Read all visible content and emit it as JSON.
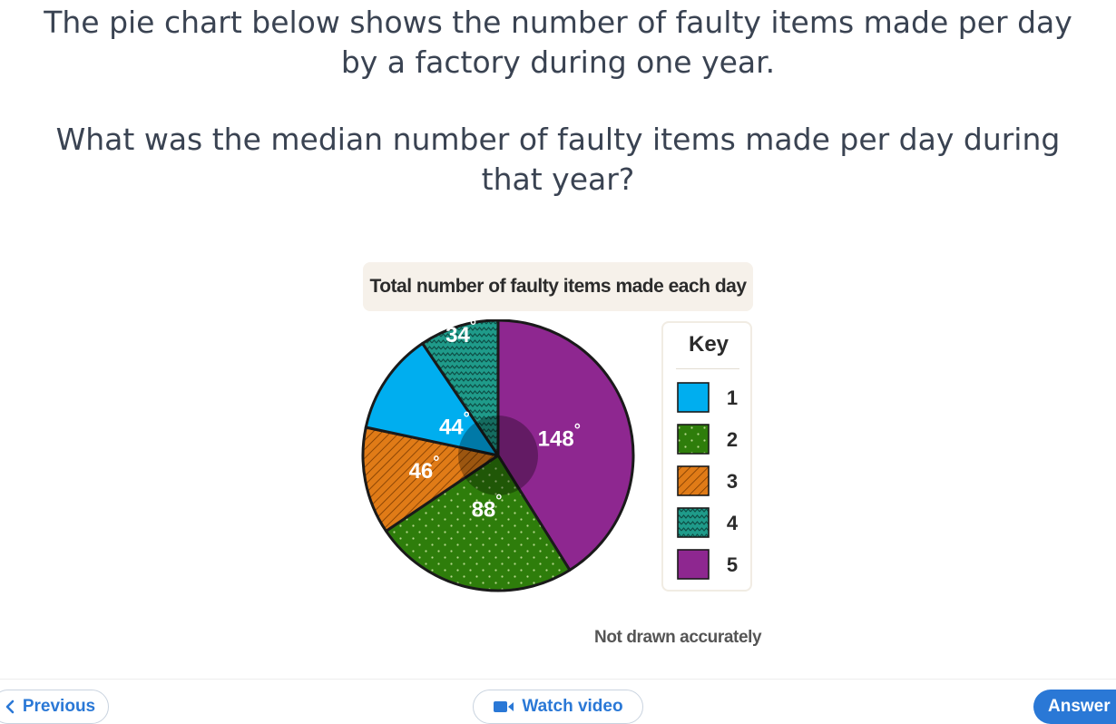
{
  "question": {
    "intro_line1": "The pie chart below shows the number of faulty items made per day",
    "intro_line2": "by a factory during one year.",
    "ask_line1": "What was the median number of faulty items made per day during",
    "ask_line2": "that year?"
  },
  "chart_data": {
    "type": "pie",
    "title": "Total number of faulty items made each day",
    "unit": "°",
    "slices": [
      {
        "name": "1",
        "value": 44,
        "label": "44",
        "color": "#00aeef",
        "pattern": "solid"
      },
      {
        "name": "2",
        "value": 88,
        "label": "88",
        "color": "#2e7d0b",
        "pattern": "dots"
      },
      {
        "name": "3",
        "value": 46,
        "label": "46",
        "color": "#e07b17",
        "pattern": "diagonal"
      },
      {
        "name": "4",
        "value": 34,
        "label": "34",
        "color": "#1f9b8a",
        "pattern": "zigzag"
      },
      {
        "name": "5",
        "value": 148,
        "label": "148",
        "color": "#8e2790",
        "pattern": "solid"
      }
    ],
    "legend": {
      "title": "Key",
      "placement": "right"
    },
    "note": "Not drawn accurately"
  },
  "footer": {
    "previous_label": "Previous",
    "video_label": "Watch video",
    "answer_label": "Answer"
  },
  "icons": {
    "previous": "chevron-left-icon",
    "video": "video-camera-icon"
  },
  "colors": {
    "accent": "#2a78d6",
    "text": "#3a4352"
  }
}
